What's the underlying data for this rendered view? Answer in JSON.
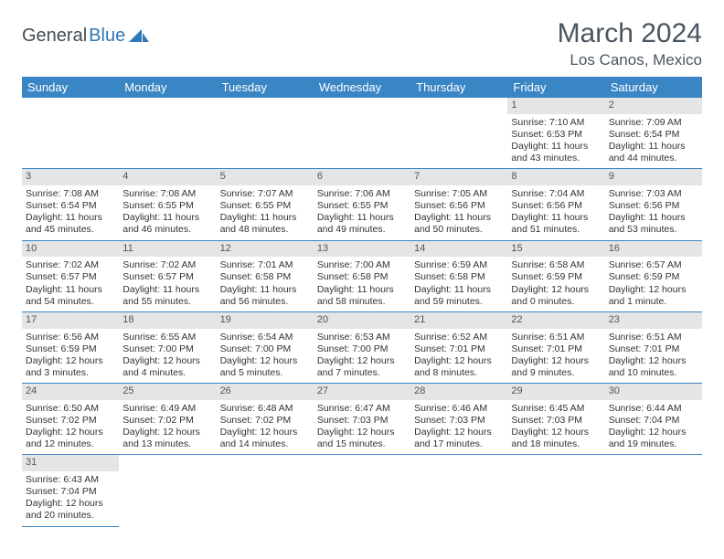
{
  "brand": {
    "part1": "General",
    "part2": "Blue"
  },
  "title": "March 2024",
  "location": "Los Canos, Mexico",
  "colors": {
    "header_bg": "#3a86c4",
    "header_fg": "#ffffff",
    "daybar_bg": "#e3e5e7",
    "text": "#333333",
    "title_color": "#4a5560"
  },
  "day_headers": [
    "Sunday",
    "Monday",
    "Tuesday",
    "Wednesday",
    "Thursday",
    "Friday",
    "Saturday"
  ],
  "weeks": [
    [
      {
        "empty": true
      },
      {
        "empty": true
      },
      {
        "empty": true
      },
      {
        "empty": true
      },
      {
        "empty": true
      },
      {
        "n": "1",
        "sunrise": "Sunrise: 7:10 AM",
        "sunset": "Sunset: 6:53 PM",
        "daylight": "Daylight: 11 hours and 43 minutes."
      },
      {
        "n": "2",
        "sunrise": "Sunrise: 7:09 AM",
        "sunset": "Sunset: 6:54 PM",
        "daylight": "Daylight: 11 hours and 44 minutes."
      }
    ],
    [
      {
        "n": "3",
        "sunrise": "Sunrise: 7:08 AM",
        "sunset": "Sunset: 6:54 PM",
        "daylight": "Daylight: 11 hours and 45 minutes."
      },
      {
        "n": "4",
        "sunrise": "Sunrise: 7:08 AM",
        "sunset": "Sunset: 6:55 PM",
        "daylight": "Daylight: 11 hours and 46 minutes."
      },
      {
        "n": "5",
        "sunrise": "Sunrise: 7:07 AM",
        "sunset": "Sunset: 6:55 PM",
        "daylight": "Daylight: 11 hours and 48 minutes."
      },
      {
        "n": "6",
        "sunrise": "Sunrise: 7:06 AM",
        "sunset": "Sunset: 6:55 PM",
        "daylight": "Daylight: 11 hours and 49 minutes."
      },
      {
        "n": "7",
        "sunrise": "Sunrise: 7:05 AM",
        "sunset": "Sunset: 6:56 PM",
        "daylight": "Daylight: 11 hours and 50 minutes."
      },
      {
        "n": "8",
        "sunrise": "Sunrise: 7:04 AM",
        "sunset": "Sunset: 6:56 PM",
        "daylight": "Daylight: 11 hours and 51 minutes."
      },
      {
        "n": "9",
        "sunrise": "Sunrise: 7:03 AM",
        "sunset": "Sunset: 6:56 PM",
        "daylight": "Daylight: 11 hours and 53 minutes."
      }
    ],
    [
      {
        "n": "10",
        "sunrise": "Sunrise: 7:02 AM",
        "sunset": "Sunset: 6:57 PM",
        "daylight": "Daylight: 11 hours and 54 minutes."
      },
      {
        "n": "11",
        "sunrise": "Sunrise: 7:02 AM",
        "sunset": "Sunset: 6:57 PM",
        "daylight": "Daylight: 11 hours and 55 minutes."
      },
      {
        "n": "12",
        "sunrise": "Sunrise: 7:01 AM",
        "sunset": "Sunset: 6:58 PM",
        "daylight": "Daylight: 11 hours and 56 minutes."
      },
      {
        "n": "13",
        "sunrise": "Sunrise: 7:00 AM",
        "sunset": "Sunset: 6:58 PM",
        "daylight": "Daylight: 11 hours and 58 minutes."
      },
      {
        "n": "14",
        "sunrise": "Sunrise: 6:59 AM",
        "sunset": "Sunset: 6:58 PM",
        "daylight": "Daylight: 11 hours and 59 minutes."
      },
      {
        "n": "15",
        "sunrise": "Sunrise: 6:58 AM",
        "sunset": "Sunset: 6:59 PM",
        "daylight": "Daylight: 12 hours and 0 minutes."
      },
      {
        "n": "16",
        "sunrise": "Sunrise: 6:57 AM",
        "sunset": "Sunset: 6:59 PM",
        "daylight": "Daylight: 12 hours and 1 minute."
      }
    ],
    [
      {
        "n": "17",
        "sunrise": "Sunrise: 6:56 AM",
        "sunset": "Sunset: 6:59 PM",
        "daylight": "Daylight: 12 hours and 3 minutes."
      },
      {
        "n": "18",
        "sunrise": "Sunrise: 6:55 AM",
        "sunset": "Sunset: 7:00 PM",
        "daylight": "Daylight: 12 hours and 4 minutes."
      },
      {
        "n": "19",
        "sunrise": "Sunrise: 6:54 AM",
        "sunset": "Sunset: 7:00 PM",
        "daylight": "Daylight: 12 hours and 5 minutes."
      },
      {
        "n": "20",
        "sunrise": "Sunrise: 6:53 AM",
        "sunset": "Sunset: 7:00 PM",
        "daylight": "Daylight: 12 hours and 7 minutes."
      },
      {
        "n": "21",
        "sunrise": "Sunrise: 6:52 AM",
        "sunset": "Sunset: 7:01 PM",
        "daylight": "Daylight: 12 hours and 8 minutes."
      },
      {
        "n": "22",
        "sunrise": "Sunrise: 6:51 AM",
        "sunset": "Sunset: 7:01 PM",
        "daylight": "Daylight: 12 hours and 9 minutes."
      },
      {
        "n": "23",
        "sunrise": "Sunrise: 6:51 AM",
        "sunset": "Sunset: 7:01 PM",
        "daylight": "Daylight: 12 hours and 10 minutes."
      }
    ],
    [
      {
        "n": "24",
        "sunrise": "Sunrise: 6:50 AM",
        "sunset": "Sunset: 7:02 PM",
        "daylight": "Daylight: 12 hours and 12 minutes."
      },
      {
        "n": "25",
        "sunrise": "Sunrise: 6:49 AM",
        "sunset": "Sunset: 7:02 PM",
        "daylight": "Daylight: 12 hours and 13 minutes."
      },
      {
        "n": "26",
        "sunrise": "Sunrise: 6:48 AM",
        "sunset": "Sunset: 7:02 PM",
        "daylight": "Daylight: 12 hours and 14 minutes."
      },
      {
        "n": "27",
        "sunrise": "Sunrise: 6:47 AM",
        "sunset": "Sunset: 7:03 PM",
        "daylight": "Daylight: 12 hours and 15 minutes."
      },
      {
        "n": "28",
        "sunrise": "Sunrise: 6:46 AM",
        "sunset": "Sunset: 7:03 PM",
        "daylight": "Daylight: 12 hours and 17 minutes."
      },
      {
        "n": "29",
        "sunrise": "Sunrise: 6:45 AM",
        "sunset": "Sunset: 7:03 PM",
        "daylight": "Daylight: 12 hours and 18 minutes."
      },
      {
        "n": "30",
        "sunrise": "Sunrise: 6:44 AM",
        "sunset": "Sunset: 7:04 PM",
        "daylight": "Daylight: 12 hours and 19 minutes."
      }
    ],
    [
      {
        "n": "31",
        "sunrise": "Sunrise: 6:43 AM",
        "sunset": "Sunset: 7:04 PM",
        "daylight": "Daylight: 12 hours and 20 minutes."
      },
      {
        "empty": true
      },
      {
        "empty": true
      },
      {
        "empty": true
      },
      {
        "empty": true
      },
      {
        "empty": true
      },
      {
        "empty": true
      }
    ]
  ]
}
